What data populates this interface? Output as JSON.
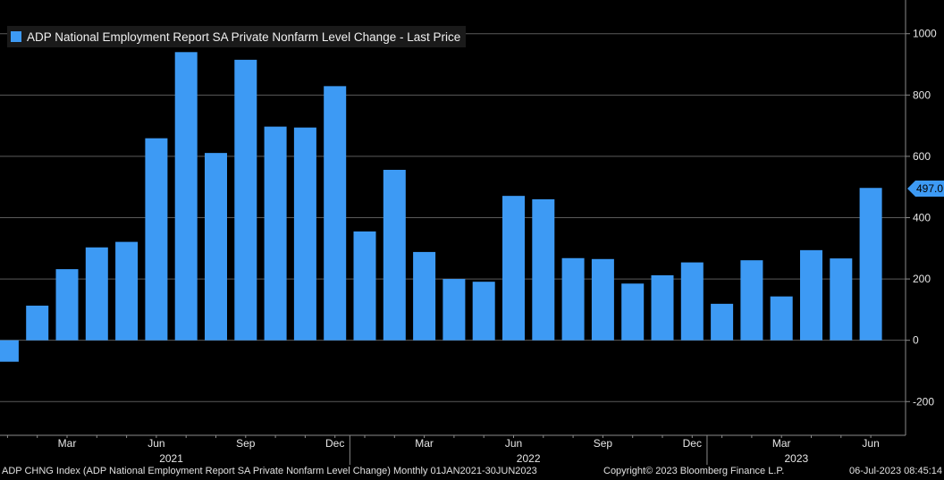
{
  "colors": {
    "bar": "#3d9af4",
    "grid": "#5a5a5a",
    "axis": "#8a8a8a",
    "text": "#e6e6e6"
  },
  "legend": {
    "label": "ADP National Employment Report SA Private Nonfarm Level Change - Last Price"
  },
  "last_value_label": "497.0",
  "footer": {
    "left": "ADP CHNG Index (ADP National Employment Report SA Private Nonfarm Level Change)  Monthly 01JAN2021-30JUN2023",
    "center": "Copyright© 2023 Bloomberg Finance L.P.",
    "right": "06-Jul-2023 08:45:14"
  },
  "chart_data": {
    "type": "bar",
    "categories": [
      "Jan 2021",
      "Feb 2021",
      "Mar 2021",
      "Apr 2021",
      "May 2021",
      "Jun 2021",
      "Jul 2021",
      "Aug 2021",
      "Sep 2021",
      "Oct 2021",
      "Nov 2021",
      "Dec 2021",
      "Jan 2022",
      "Feb 2022",
      "Mar 2022",
      "Apr 2022",
      "May 2022",
      "Jun 2022",
      "Jul 2022",
      "Aug 2022",
      "Sep 2022",
      "Oct 2022",
      "Nov 2022",
      "Dec 2022",
      "Jan 2023",
      "Feb 2023",
      "Mar 2023",
      "Apr 2023",
      "May 2023",
      "Jun 2023"
    ],
    "series": [
      {
        "name": "ADP National Employment Report SA Private Nonfarm Level Change - Last Price",
        "values": [
          -70,
          113,
          232,
          303,
          321,
          659,
          940,
          611,
          915,
          697,
          694,
          829,
          355,
          556,
          288,
          200,
          191,
          471,
          460,
          268,
          265,
          185,
          212,
          254,
          119,
          261,
          143,
          294,
          267,
          497
        ]
      }
    ],
    "ylim": [
      -310,
      1110
    ],
    "yticks": [
      -200,
      0,
      200,
      400,
      600,
      800,
      1000
    ],
    "xticks": [
      {
        "label": "Mar",
        "index": 2
      },
      {
        "label": "Jun",
        "index": 5
      },
      {
        "label": "Sep",
        "index": 8
      },
      {
        "label": "Dec",
        "index": 11
      },
      {
        "label": "Mar",
        "index": 14
      },
      {
        "label": "Jun",
        "index": 17
      },
      {
        "label": "Sep",
        "index": 20
      },
      {
        "label": "Dec",
        "index": 23
      },
      {
        "label": "Mar",
        "index": 26
      },
      {
        "label": "Jun",
        "index": 29
      }
    ],
    "years": [
      {
        "label": "2021",
        "start": 0,
        "end": 11
      },
      {
        "label": "2022",
        "start": 12,
        "end": 23
      },
      {
        "label": "2023",
        "start": 24,
        "end": 29
      }
    ],
    "grid": true,
    "legend_position": "top-left"
  }
}
